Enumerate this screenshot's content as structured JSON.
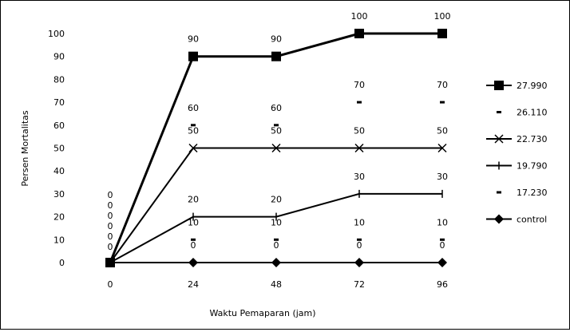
{
  "chart_data": {
    "type": "line",
    "title": "",
    "xlabel": "Waktu Pemaparan (jam)",
    "ylabel": "Persen Mortalitas",
    "x": [
      0,
      24,
      48,
      72,
      96
    ],
    "x_tick_labels": [
      "0",
      "24",
      "48",
      "72",
      "96"
    ],
    "ylim": [
      0,
      100
    ],
    "y_ticks": [
      0,
      10,
      20,
      30,
      40,
      50,
      60,
      70,
      80,
      90,
      100
    ],
    "grid": false,
    "legend_position": "right",
    "series": [
      {
        "name": "27.990",
        "values": [
          0,
          90,
          90,
          100,
          100
        ],
        "marker": "square",
        "line": true,
        "width": 3
      },
      {
        "name": "26.110",
        "values": [
          0,
          60,
          60,
          70,
          70
        ],
        "marker": "dash",
        "line": false,
        "width": 0
      },
      {
        "name": "22.730",
        "values": [
          0,
          50,
          50,
          50,
          50
        ],
        "marker": "x",
        "line": true,
        "width": 2
      },
      {
        "name": "19.790",
        "values": [
          0,
          20,
          20,
          30,
          30
        ],
        "marker": "plus",
        "line": true,
        "width": 2
      },
      {
        "name": "17.230",
        "values": [
          0,
          10,
          10,
          10,
          10
        ],
        "marker": "dash",
        "line": false,
        "width": 0
      },
      {
        "name": "control",
        "values": [
          0,
          0,
          0,
          0,
          0
        ],
        "marker": "diamond",
        "line": true,
        "width": 2
      }
    ]
  }
}
